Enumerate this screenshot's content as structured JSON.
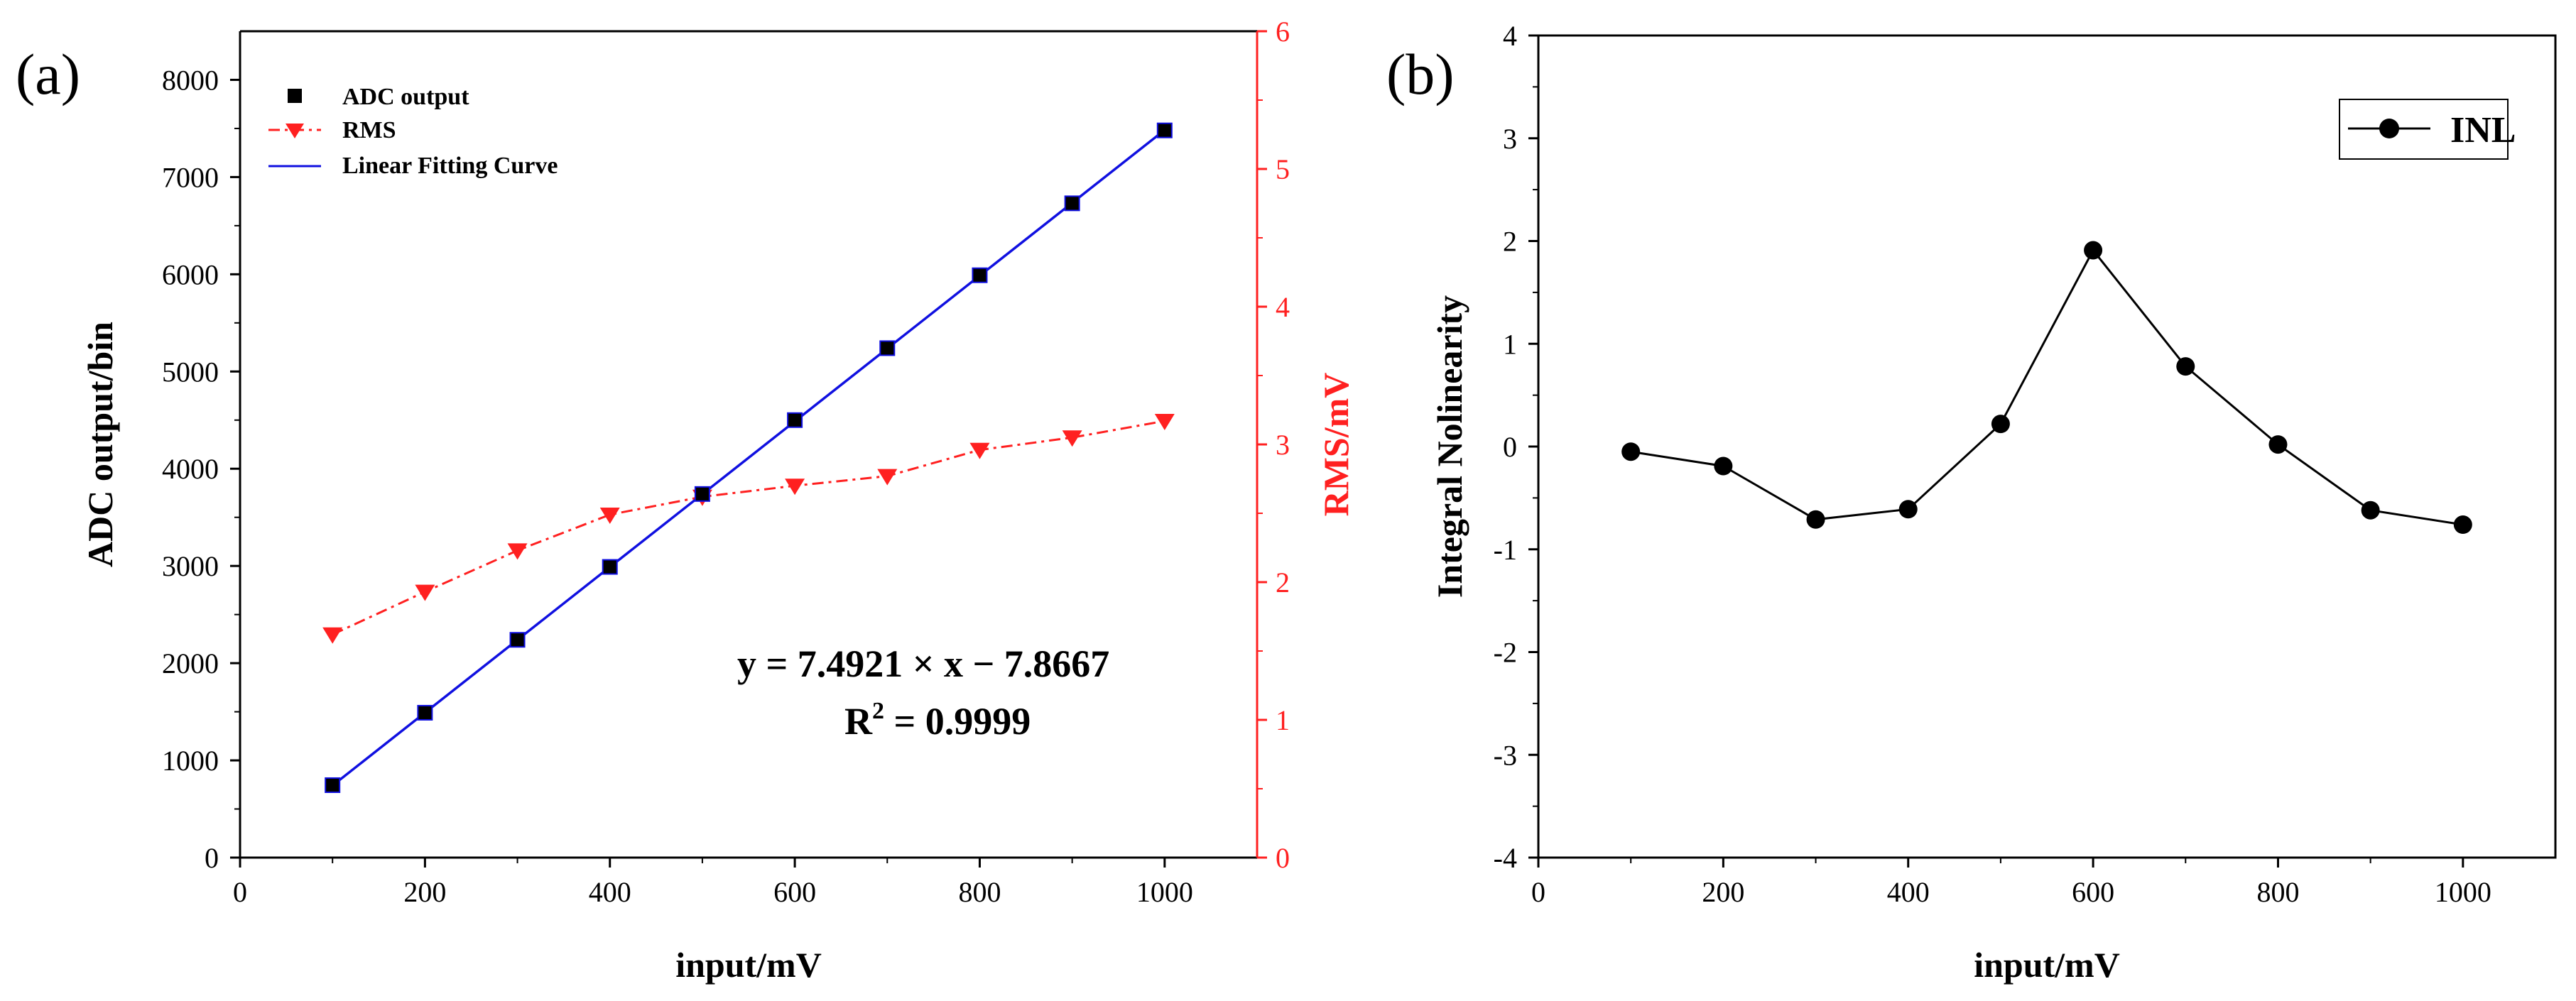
{
  "chart_data": [
    {
      "panel_label": "(a)",
      "type": "line",
      "xlabel": "input/mV",
      "ylabel": "ADC output/bin",
      "y2label": "RMS/mV",
      "xlim": [
        0,
        1100
      ],
      "ylim": [
        0,
        8500
      ],
      "y2lim": [
        0,
        6
      ],
      "xticks": [
        0,
        200,
        400,
        600,
        800,
        1000
      ],
      "yticks": [
        0,
        1000,
        2000,
        3000,
        4000,
        5000,
        6000,
        7000,
        8000
      ],
      "y2ticks": [
        0,
        1,
        2,
        3,
        4,
        5,
        6
      ],
      "x": [
        100,
        200,
        300,
        400,
        500,
        600,
        700,
        800,
        900,
        1000
      ],
      "series": [
        {
          "name": "ADC output",
          "axis": "left",
          "marker": "square",
          "color": "#000000",
          "values": [
            745,
            1490,
            2240,
            2990,
            3740,
            4500,
            5240,
            5990,
            6730,
            7480
          ]
        },
        {
          "name": "RMS",
          "axis": "right",
          "marker": "triangle-down",
          "color": "#ff2020",
          "line": "dash-dot",
          "values": [
            1.62,
            1.93,
            2.23,
            2.49,
            2.62,
            2.7,
            2.77,
            2.96,
            3.05,
            3.17
          ]
        },
        {
          "name": "Linear Fitting Curve",
          "axis": "left",
          "color": "#1010e0",
          "line": "solid",
          "slope": 7.4921,
          "intercept": -7.8667,
          "x_range": [
            100,
            1000
          ]
        }
      ],
      "legend_position": "top-left",
      "annotation": {
        "equation": "y = 7.4921 × x − 7.8667",
        "r2_prefix": "R",
        "r2_sup": "2",
        "r2_suffix": " = 0.9999"
      }
    },
    {
      "panel_label": "(b)",
      "type": "line",
      "xlabel": "input/mV",
      "ylabel": "Integral Nolinearity",
      "xlim": [
        0,
        1100
      ],
      "ylim": [
        -4,
        4
      ],
      "xticks": [
        0,
        200,
        400,
        600,
        800,
        1000
      ],
      "yticks": [
        -4,
        -3,
        -2,
        -1,
        0,
        1,
        2,
        3,
        4
      ],
      "x": [
        100,
        200,
        300,
        400,
        500,
        600,
        700,
        800,
        900,
        1000
      ],
      "series": [
        {
          "name": "INL",
          "marker": "circle",
          "color": "#000000",
          "values": [
            -0.05,
            -0.19,
            -0.71,
            -0.61,
            0.22,
            1.91,
            0.78,
            0.02,
            -0.62,
            -0.76
          ]
        }
      ],
      "legend_position": "top-right"
    }
  ]
}
